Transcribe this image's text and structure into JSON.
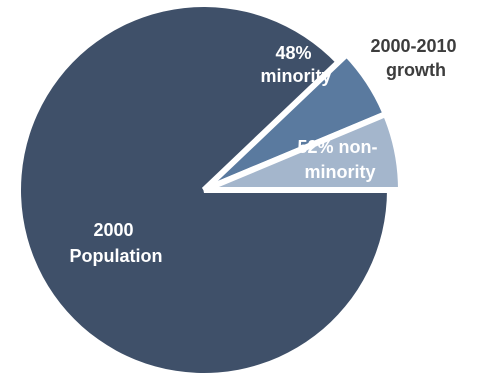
{
  "chart_data": {
    "type": "pie",
    "title": "",
    "slices": [
      {
        "id": "population-2000",
        "label_lines": [
          "2000",
          "Population"
        ],
        "value": 87.9,
        "color": "#3f5069",
        "exploded": false
      },
      {
        "id": "growth-minority",
        "label_lines": [
          "48%",
          "minority"
        ],
        "value": 5.8,
        "color": "#5a7a9f",
        "exploded": true
      },
      {
        "id": "growth-nonminority",
        "label_lines": [
          "52% non-",
          "minority"
        ],
        "value": 6.3,
        "color": "#a4b6cc",
        "exploded": true
      }
    ],
    "group_annotation": {
      "lines": [
        "2000-2010",
        "growth"
      ]
    }
  }
}
